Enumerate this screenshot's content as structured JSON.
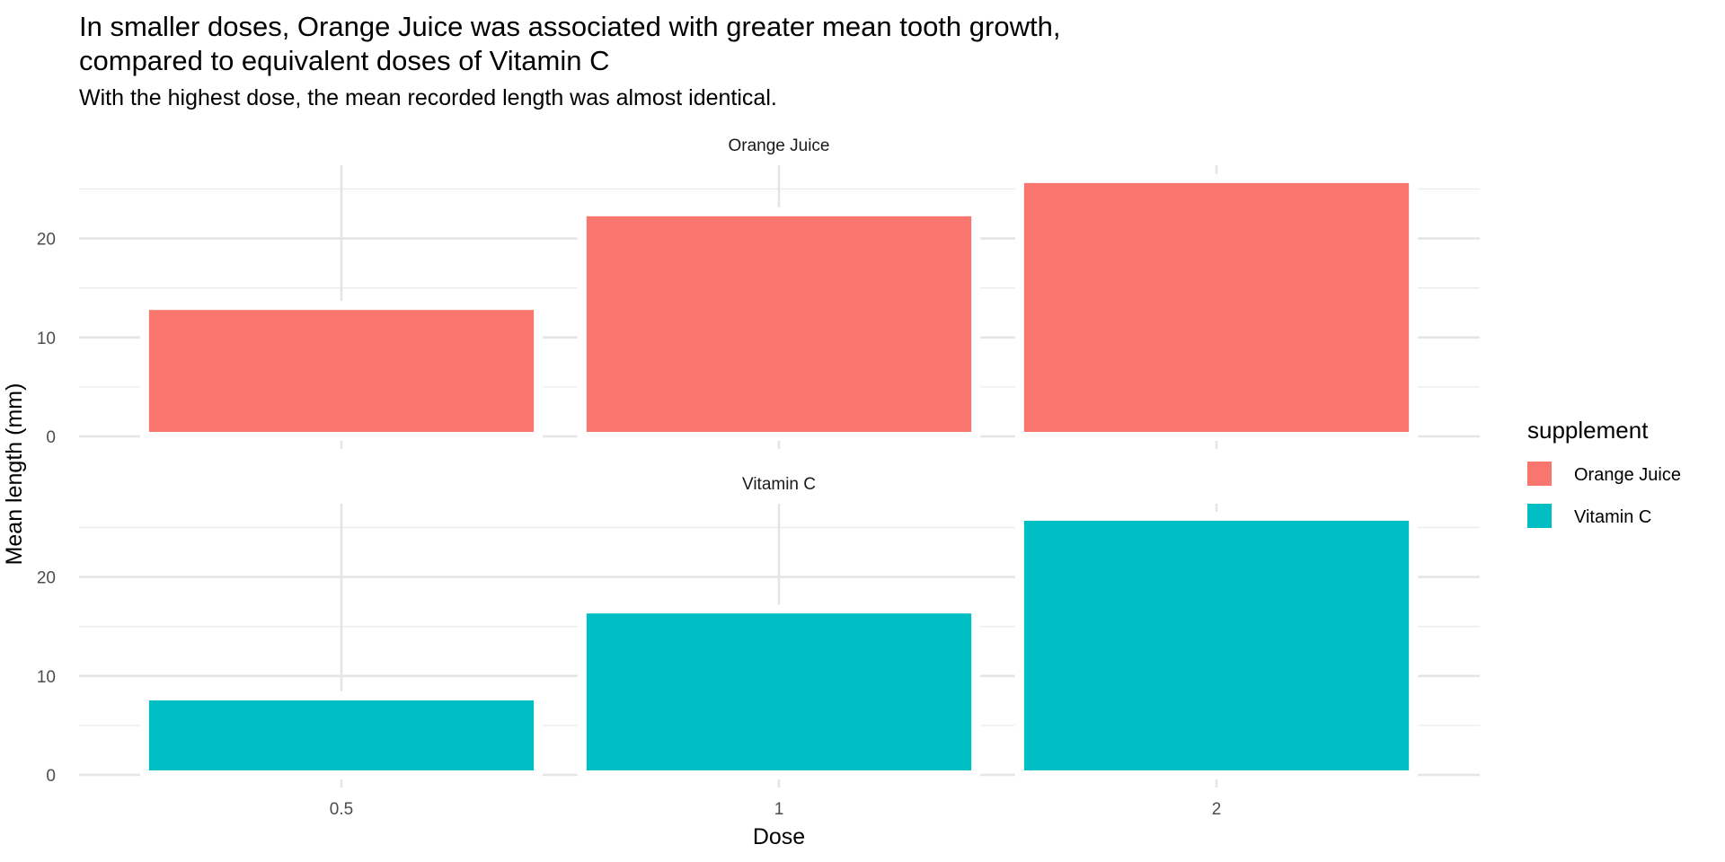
{
  "chart_data": {
    "type": "bar",
    "title": "In smaller doses, Orange Juice was associated with greater mean tooth growth,",
    "title_line2": "compared to equivalent doses of Vitamin C",
    "subtitle": "With the highest dose, the mean recorded length was almost identical.",
    "xlabel": "Dose",
    "ylabel": "Mean length (mm)",
    "categories": [
      "0.5",
      "1",
      "2"
    ],
    "yticks": [
      "0",
      "10",
      "20"
    ],
    "ylim": [
      0,
      27.5
    ],
    "grid": true,
    "facets": [
      "Orange Juice",
      "Vitamin C"
    ],
    "legend": {
      "title": "supplement",
      "position": "right"
    },
    "series": [
      {
        "name": "Orange Juice",
        "color": "#F8766D",
        "values": [
          13.23,
          22.7,
          26.06
        ]
      },
      {
        "name": "Vitamin C",
        "color": "#00BFC4",
        "values": [
          7.98,
          16.77,
          26.14
        ]
      }
    ]
  }
}
